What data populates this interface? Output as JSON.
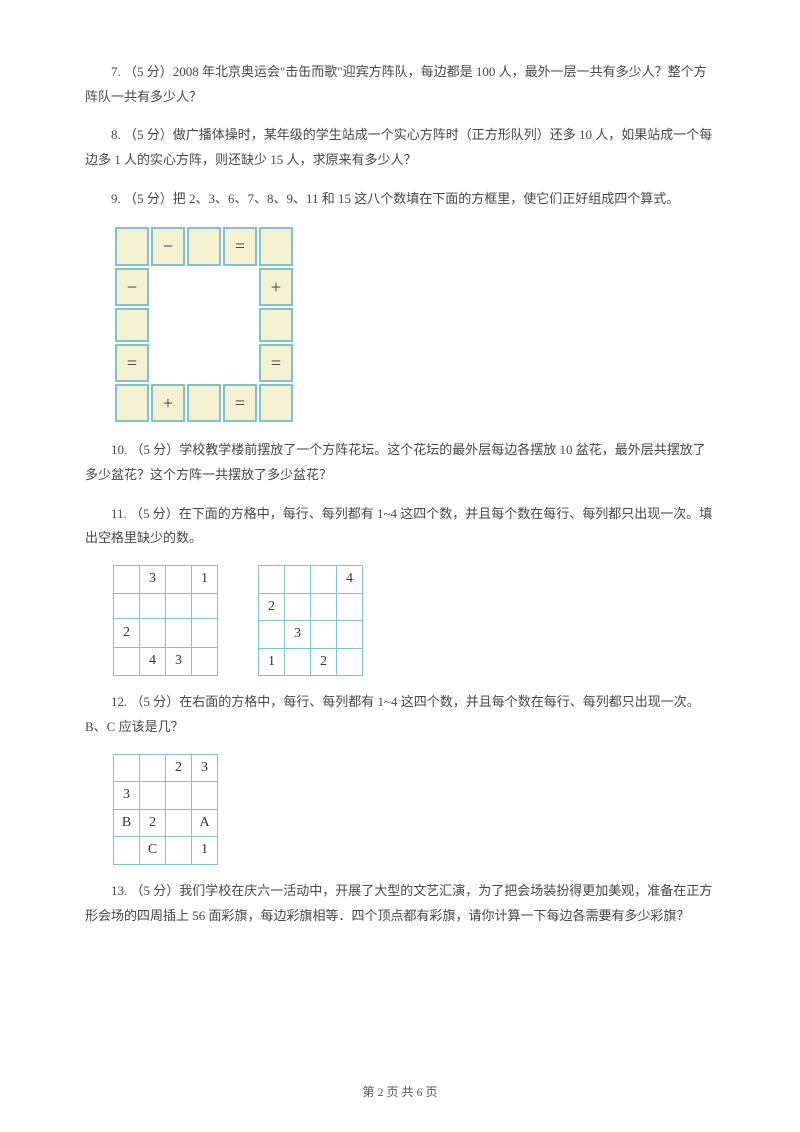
{
  "q7": "7. （5 分）2008 年北京奥运会\"击缶而歌\"迎宾方阵队，每边都是 100 人，最外一层一共有多少人？整个方阵队一共有多少人？",
  "q8": "8. （5 分）做广播体操时，某年级的学生站成一个实心方阵时（正方形队列）还多 10 人，如果站成一个每边多 1 人的实心方阵，则还缺少 15 人，求原来有多少人？",
  "q9": "9. （5 分）把 2、3、6、7、8、9、11 和 15 这八个数填在下面的方框里，使它们正好组成四个算式。",
  "q9_ops": {
    "top_minus": "−",
    "top_eq": "=",
    "left_minus": "−",
    "right_plus": "+",
    "left_eq": "=",
    "right_eq": "=",
    "bot_plus": "+",
    "bot_eq": "="
  },
  "q10": "10. （5 分）学校教学楼前摆放了一个方阵花坛。这个花坛的最外层每边各摆放 10 盆花，最外层共摆放了多少盆花？这个方阵一共摆放了多少盆花？",
  "q11": "11. （5 分）在下面的方格中，每行、每列都有 1~4 这四个数，并且每个数在每行、每列都只出现一次。填出空格里缺少的数。",
  "q11_left": [
    [
      "",
      "3",
      "",
      "1"
    ],
    [
      "",
      "",
      "",
      ""
    ],
    [
      "2",
      "",
      "",
      ""
    ],
    [
      "",
      "4",
      "3",
      ""
    ]
  ],
  "q11_right": [
    [
      "",
      "",
      "",
      "4"
    ],
    [
      "2",
      "",
      "",
      ""
    ],
    [
      "",
      "3",
      "",
      ""
    ],
    [
      "1",
      "",
      "2",
      ""
    ]
  ],
  "q12": "12. （5 分）在右面的方格中，每行、每列都有 1~4 这四个数，并且每个数在每行、每列都只出现一次。B、C 应该是几？",
  "q12_grid": [
    [
      "",
      "",
      "2",
      "3"
    ],
    [
      "3",
      "",
      "",
      ""
    ],
    [
      "B",
      "2",
      "",
      "A"
    ],
    [
      "",
      "C",
      "",
      "1"
    ]
  ],
  "q13": "13. （5 分）我们学校在庆六一活动中，开展了大型的文艺汇演，为了把会场装扮得更加美观，准备在正方形会场的四周插上 56 面彩旗，每边彩旗相等．四个顶点都有彩旗，请你计算一下每边各需要有多少彩旗？",
  "footer": "第 2 页 共 6 页"
}
